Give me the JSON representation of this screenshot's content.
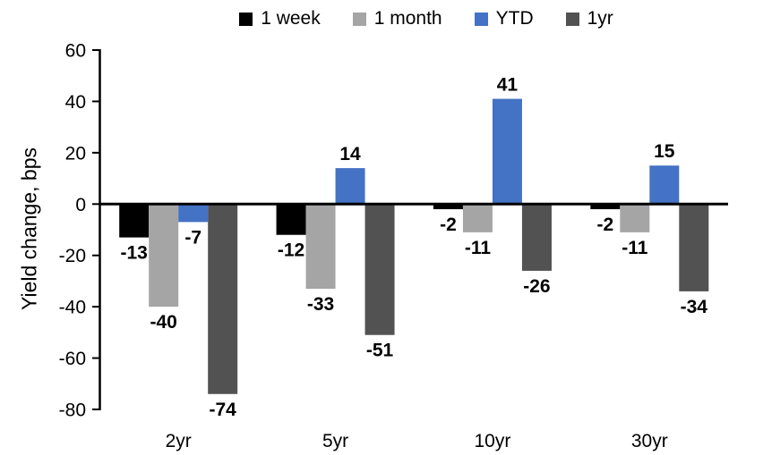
{
  "chart_data": {
    "type": "bar",
    "title": "",
    "xlabel": "",
    "ylabel": "Yield change, bps",
    "categories": [
      "2yr",
      "5yr",
      "10yr",
      "30yr"
    ],
    "series": [
      {
        "name": "1 week",
        "color": "#000000",
        "values": [
          -13,
          -12,
          -2,
          -2
        ]
      },
      {
        "name": "1 month",
        "color": "#A5A5A5",
        "values": [
          -40,
          -33,
          -11,
          -11
        ]
      },
      {
        "name": "YTD",
        "color": "#4472C4",
        "values": [
          -7,
          14,
          41,
          15
        ]
      },
      {
        "name": "1yr",
        "color": "#525252",
        "values": [
          -74,
          -51,
          -26,
          -34
        ]
      }
    ],
    "ylim": [
      -80,
      60
    ],
    "ytick_step": 20,
    "legend_position": "top",
    "grid": false,
    "data_labels": true,
    "axis_color": "#000000"
  }
}
